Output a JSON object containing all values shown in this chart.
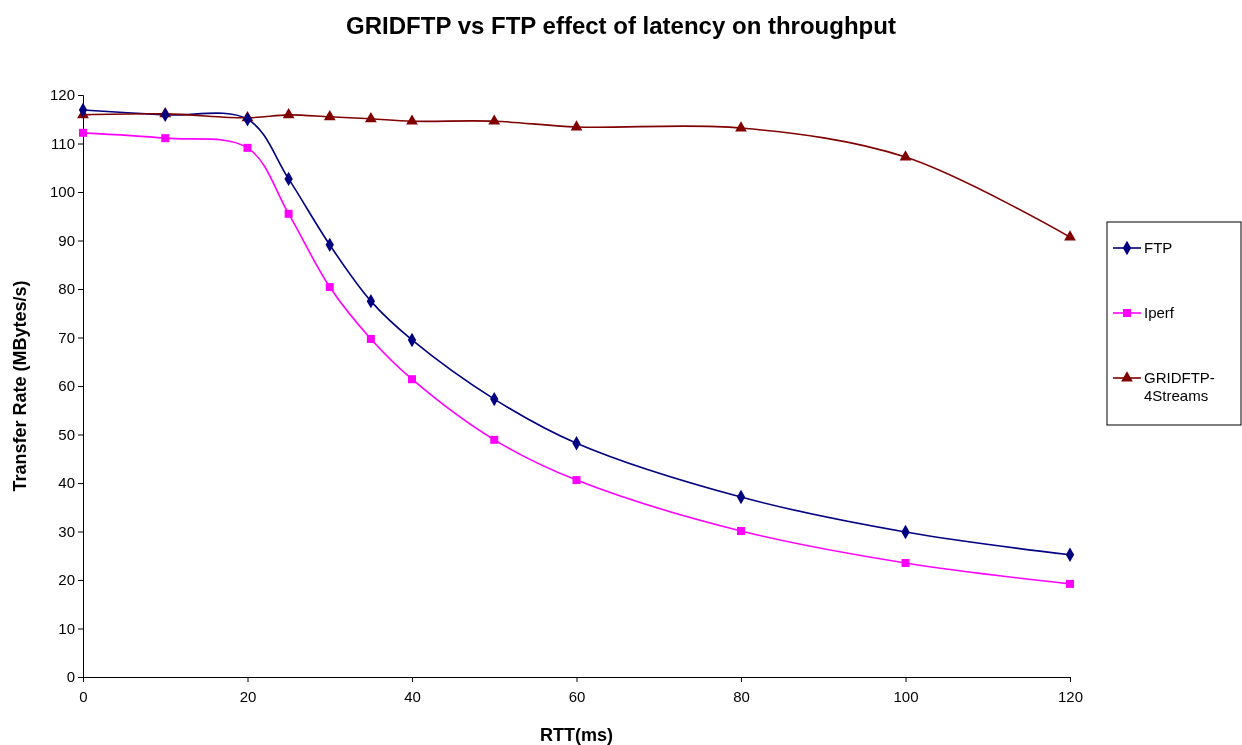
{
  "chart_data": {
    "type": "line",
    "title": "GRIDFTP vs FTP effect of latency on throughput",
    "xlabel": "RTT(ms)",
    "ylabel": "Transfer Rate (MBytes/s)",
    "x": [
      0,
      10,
      20,
      25,
      30,
      35,
      40,
      50,
      60,
      80,
      100,
      120
    ],
    "xlim": [
      0,
      120
    ],
    "xticks": [
      0,
      20,
      40,
      60,
      80,
      100,
      120
    ],
    "ylim": [
      0,
      120
    ],
    "yticks": [
      0,
      10,
      20,
      30,
      40,
      50,
      60,
      70,
      80,
      90,
      100,
      110,
      120
    ],
    "grid": false,
    "legend": "right",
    "line_style": "solid",
    "series": [
      {
        "name": "FTP",
        "color": "#000080",
        "marker": "diamond",
        "values": [
          116.9,
          115.9,
          115.0,
          102.7,
          89.1,
          77.5,
          69.5,
          57.3,
          48.2,
          37.1,
          29.9,
          25.2
        ]
      },
      {
        "name": "Iperf",
        "color": "#ff00ff",
        "marker": "square",
        "values": [
          112.2,
          111.1,
          109.1,
          95.5,
          80.4,
          69.7,
          61.4,
          48.9,
          40.6,
          30.1,
          23.5,
          19.2
        ]
      },
      {
        "name": "GRIDFTP-4Streams",
        "color": "#800000",
        "marker": "triangle",
        "values": [
          115.9,
          116.1,
          115.3,
          115.9,
          115.5,
          115.1,
          114.6,
          114.6,
          113.4,
          113.2,
          107.2,
          90.7
        ]
      }
    ]
  }
}
